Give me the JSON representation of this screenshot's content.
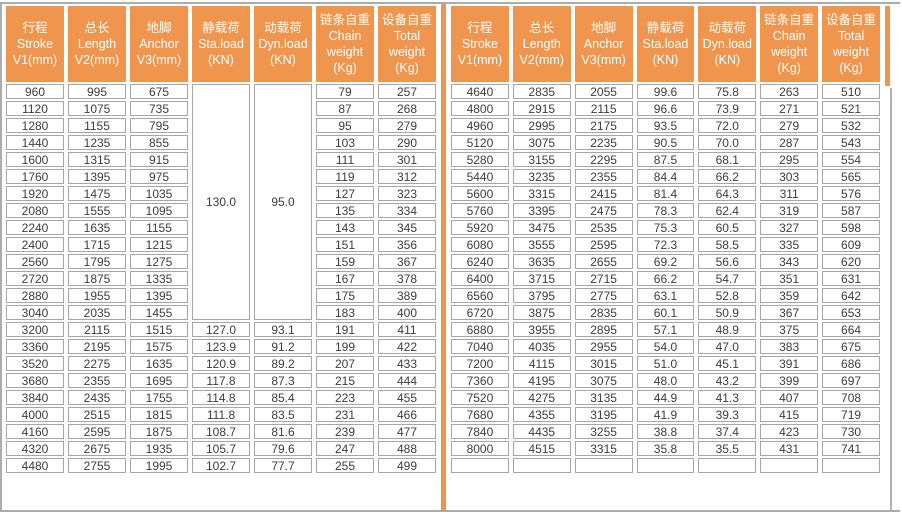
{
  "colors": {
    "header_bg": "#f0954e",
    "divider": "#f0954e",
    "cell_border": "#a6a6a6",
    "frame_border": "#acacac",
    "header_text": "#ffffff",
    "cell_text": "#3c3c3c"
  },
  "columns": [
    {
      "key": "stroke",
      "lines": [
        "行程",
        "Stroke",
        "V1(mm)"
      ]
    },
    {
      "key": "length",
      "lines": [
        "总长",
        "Length",
        "V2(mm)"
      ]
    },
    {
      "key": "anchor",
      "lines": [
        "地脚",
        "Anchor",
        "V3(mm)"
      ]
    },
    {
      "key": "static_load",
      "lines": [
        "静载荷",
        "Sta.load",
        "(KN)"
      ]
    },
    {
      "key": "dynamic_load",
      "lines": [
        "动载荷",
        "Dyn.load",
        "(KN)"
      ]
    },
    {
      "key": "chain_weight",
      "lines": [
        "链条自重",
        "Chain",
        "weight",
        "(Kg)"
      ]
    },
    {
      "key": "total_weight",
      "lines": [
        "设备自重",
        "Total",
        "weight",
        "(Kg)"
      ]
    }
  ],
  "tables": [
    {
      "name": "left",
      "merge": {
        "start_row": 0,
        "span": 14,
        "cols": [
          3,
          4
        ]
      },
      "rows": [
        [
          "960",
          "995",
          "675",
          "130.0",
          "95.0",
          "79",
          "257"
        ],
        [
          "1120",
          "1075",
          "735",
          null,
          null,
          "87",
          "268"
        ],
        [
          "1280",
          "1155",
          "795",
          null,
          null,
          "95",
          "279"
        ],
        [
          "1440",
          "1235",
          "855",
          null,
          null,
          "103",
          "290"
        ],
        [
          "1600",
          "1315",
          "915",
          null,
          null,
          "111",
          "301"
        ],
        [
          "1760",
          "1395",
          "975",
          null,
          null,
          "119",
          "312"
        ],
        [
          "1920",
          "1475",
          "1035",
          null,
          null,
          "127",
          "323"
        ],
        [
          "2080",
          "1555",
          "1095",
          null,
          null,
          "135",
          "334"
        ],
        [
          "2240",
          "1635",
          "1155",
          null,
          null,
          "143",
          "345"
        ],
        [
          "2400",
          "1715",
          "1215",
          null,
          null,
          "151",
          "356"
        ],
        [
          "2560",
          "1795",
          "1275",
          null,
          null,
          "159",
          "367"
        ],
        [
          "2720",
          "1875",
          "1335",
          null,
          null,
          "167",
          "378"
        ],
        [
          "2880",
          "1955",
          "1395",
          null,
          null,
          "175",
          "389"
        ],
        [
          "3040",
          "2035",
          "1455",
          null,
          null,
          "183",
          "400"
        ],
        [
          "3200",
          "2115",
          "1515",
          "127.0",
          "93.1",
          "191",
          "411"
        ],
        [
          "3360",
          "2195",
          "1575",
          "123.9",
          "91.2",
          "199",
          "422"
        ],
        [
          "3520",
          "2275",
          "1635",
          "120.9",
          "89.2",
          "207",
          "433"
        ],
        [
          "3680",
          "2355",
          "1695",
          "117.8",
          "87.3",
          "215",
          "444"
        ],
        [
          "3840",
          "2435",
          "1755",
          "114.8",
          "85.4",
          "223",
          "455"
        ],
        [
          "4000",
          "2515",
          "1815",
          "111.8",
          "83.5",
          "231",
          "466"
        ],
        [
          "4160",
          "2595",
          "1875",
          "108.7",
          "81.6",
          "239",
          "477"
        ],
        [
          "4320",
          "2675",
          "1935",
          "105.7",
          "79.6",
          "247",
          "488"
        ],
        [
          "4480",
          "2755",
          "1995",
          "102.7",
          "77.7",
          "255",
          "499"
        ]
      ]
    },
    {
      "name": "right",
      "rows": [
        [
          "4640",
          "2835",
          "2055",
          "99.6",
          "75.8",
          "263",
          "510"
        ],
        [
          "4800",
          "2915",
          "2115",
          "96.6",
          "73.9",
          "271",
          "521"
        ],
        [
          "4960",
          "2995",
          "2175",
          "93.5",
          "72.0",
          "279",
          "532"
        ],
        [
          "5120",
          "3075",
          "2235",
          "90.5",
          "70.0",
          "287",
          "543"
        ],
        [
          "5280",
          "3155",
          "2295",
          "87.5",
          "68.1",
          "295",
          "554"
        ],
        [
          "5440",
          "3235",
          "2355",
          "84.4",
          "66.2",
          "303",
          "565"
        ],
        [
          "5600",
          "3315",
          "2415",
          "81.4",
          "64.3",
          "311",
          "576"
        ],
        [
          "5760",
          "3395",
          "2475",
          "78.3",
          "62.4",
          "319",
          "587"
        ],
        [
          "5920",
          "3475",
          "2535",
          "75.3",
          "60.5",
          "327",
          "598"
        ],
        [
          "6080",
          "3555",
          "2595",
          "72.3",
          "58.5",
          "335",
          "609"
        ],
        [
          "6240",
          "3635",
          "2655",
          "69.2",
          "56.6",
          "343",
          "620"
        ],
        [
          "6400",
          "3715",
          "2715",
          "66.2",
          "54.7",
          "351",
          "631"
        ],
        [
          "6560",
          "3795",
          "2775",
          "63.1",
          "52.8",
          "359",
          "642"
        ],
        [
          "6720",
          "3875",
          "2835",
          "60.1",
          "50.9",
          "367",
          "653"
        ],
        [
          "6880",
          "3955",
          "2895",
          "57.1",
          "48.9",
          "375",
          "664"
        ],
        [
          "7040",
          "4035",
          "2955",
          "54.0",
          "47.0",
          "383",
          "675"
        ],
        [
          "7200",
          "4115",
          "3015",
          "51.0",
          "45.1",
          "391",
          "686"
        ],
        [
          "7360",
          "4195",
          "3075",
          "48.0",
          "43.2",
          "399",
          "697"
        ],
        [
          "7520",
          "4275",
          "3135",
          "44.9",
          "41.3",
          "407",
          "708"
        ],
        [
          "7680",
          "4355",
          "3195",
          "41.9",
          "39.3",
          "415",
          "719"
        ],
        [
          "7840",
          "4435",
          "3255",
          "38.8",
          "37.4",
          "423",
          "730"
        ],
        [
          "8000",
          "4515",
          "3315",
          "35.8",
          "35.5",
          "431",
          "741"
        ],
        [
          "",
          "",
          "",
          "",
          "",
          "",
          ""
        ]
      ]
    }
  ]
}
